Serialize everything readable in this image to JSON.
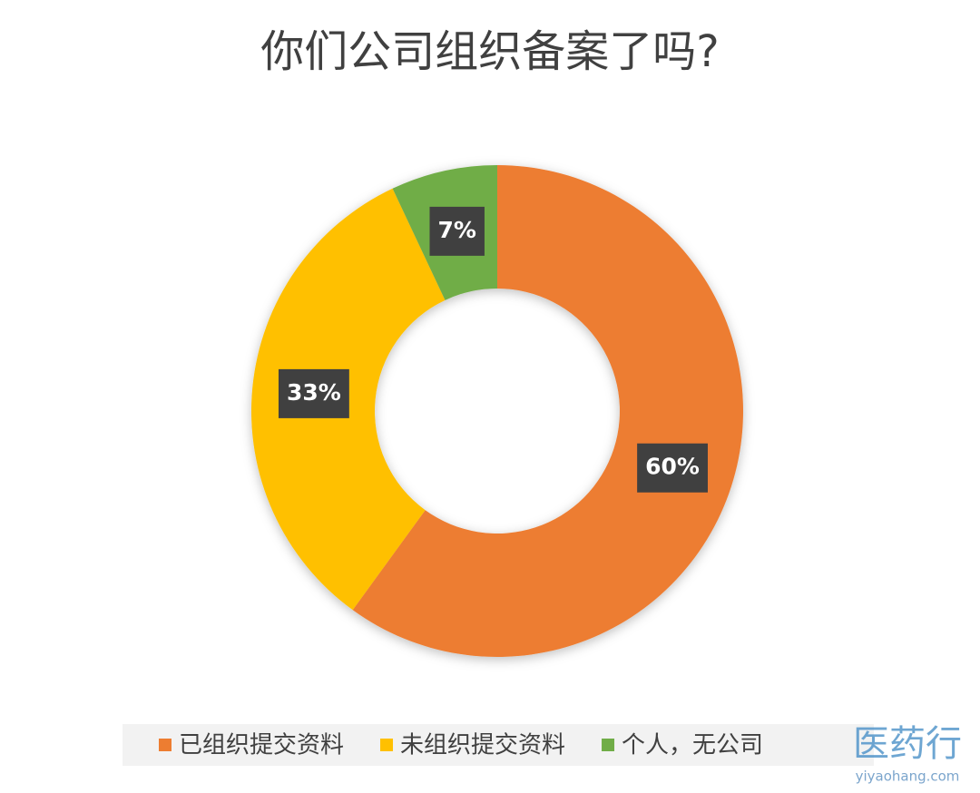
{
  "chart_data": {
    "type": "donut",
    "title": "你们公司组织备案了吗?",
    "categories": [
      "已组织提交资料",
      "未组织提交资料",
      "个人，无公司"
    ],
    "values": [
      60,
      33,
      7
    ],
    "value_labels": [
      "60%",
      "33%",
      "7%"
    ],
    "colors": [
      "#ED7D31",
      "#FFC000",
      "#70AD47"
    ],
    "legend": "bottom"
  },
  "watermark": {
    "brand": "医药行",
    "site": "yiyaohang.com"
  }
}
